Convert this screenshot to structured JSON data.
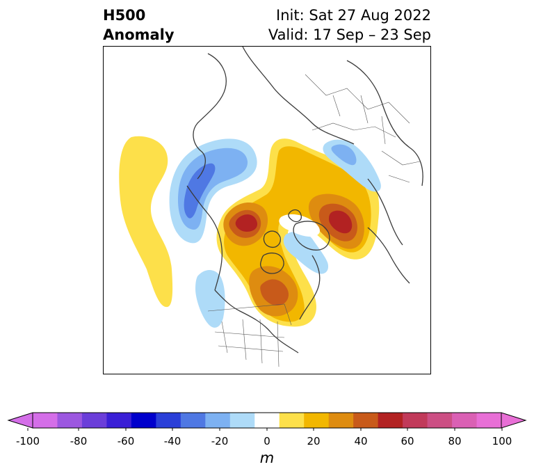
{
  "header": {
    "title_line1": "H500",
    "title_line2": "Anomaly",
    "init_text": "Init: Sat 27 Aug 2022",
    "valid_text": "Valid: 17 Sep – 23 Sep"
  },
  "colorbar": {
    "unit": "m",
    "min": -100,
    "max": 100,
    "step": 10,
    "extend": "both",
    "tick_labels": [
      "-100",
      "-80",
      "-60",
      "-40",
      "-20",
      "0",
      "20",
      "40",
      "60",
      "80",
      "100"
    ],
    "colors": [
      "#d46ee8",
      "#9c57e0",
      "#6b3ed9",
      "#3a1fd6",
      "#0000cc",
      "#2a3fd8",
      "#4f78e3",
      "#7db1f2",
      "#aedbf8",
      "#ffffff",
      "#fde04a",
      "#f2b700",
      "#de8c10",
      "#c85a1a",
      "#b22222",
      "#c13a5a",
      "#cc4f84",
      "#da60b4",
      "#e86fd6"
    ],
    "under_color": "#d46ee8",
    "over_color": "#e86fd6"
  },
  "map": {
    "projection": "north-polar-stereographic",
    "anomaly_features": [
      {
        "sign": "positive",
        "level": 60,
        "region": "Barents Sea / northern Russia"
      },
      {
        "sign": "positive",
        "level": 60,
        "region": "Beaufort Sea / Alaska"
      },
      {
        "sign": "positive",
        "level": 40,
        "region": "eastern Canada / Great Lakes"
      },
      {
        "sign": "positive",
        "level": 10,
        "region": "central North Pacific"
      },
      {
        "sign": "negative",
        "level": -50,
        "region": "northwest Pacific near Japan"
      },
      {
        "sign": "negative",
        "level": -20,
        "region": "Greenland / Iceland"
      },
      {
        "sign": "negative",
        "level": -10,
        "region": "Scandinavia"
      },
      {
        "sign": "negative",
        "level": -10,
        "region": "western United States"
      }
    ]
  }
}
